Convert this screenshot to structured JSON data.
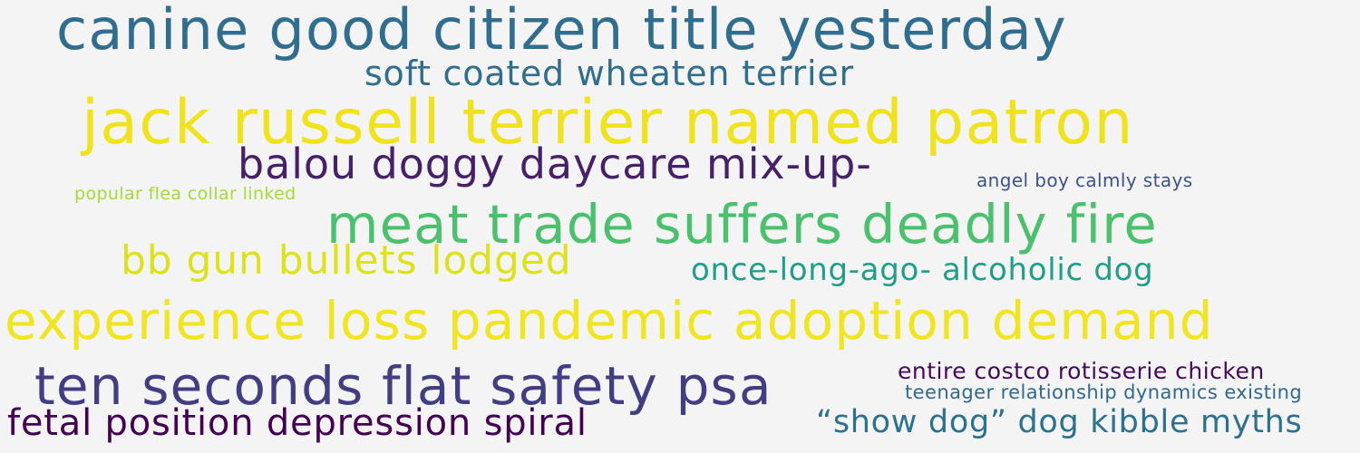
{
  "background": "#f4f4f4",
  "words": [
    {
      "text": "canine good citizen title yesterday",
      "color": "#2f6e8e"
    },
    {
      "text": "soft coated wheaten terrier",
      "color": "#2f6e8e"
    },
    {
      "text": "jack russell terrier named patron",
      "color": "#f0e31c"
    },
    {
      "text": "balou doggy daycare mix-up-",
      "color": "#462068"
    },
    {
      "text": "angel boy calmly stays",
      "color": "#3b528b"
    },
    {
      "text": "popular flea collar linked",
      "color": "#a4db36"
    },
    {
      "text": "meat trade suffers deadly fire",
      "color": "#4ac16d"
    },
    {
      "text": "bb gun bullets lodged",
      "color": "#dde318"
    },
    {
      "text": "once-long-ago- alcoholic dog",
      "color": "#1f9e89"
    },
    {
      "text": "experience loss pandemic adoption demand",
      "color": "#f1e51d"
    },
    {
      "text": "entire costco rotisserie chicken",
      "color": "#46085c"
    },
    {
      "text": "ten seconds flat safety psa",
      "color": "#433d84"
    },
    {
      "text": "teenager relationship dynamics existing",
      "color": "#31688e"
    },
    {
      "text": "fetal position depression spiral",
      "color": "#440154"
    },
    {
      "text": "“show dog” dog kibble myths",
      "color": "#2c728e"
    }
  ]
}
